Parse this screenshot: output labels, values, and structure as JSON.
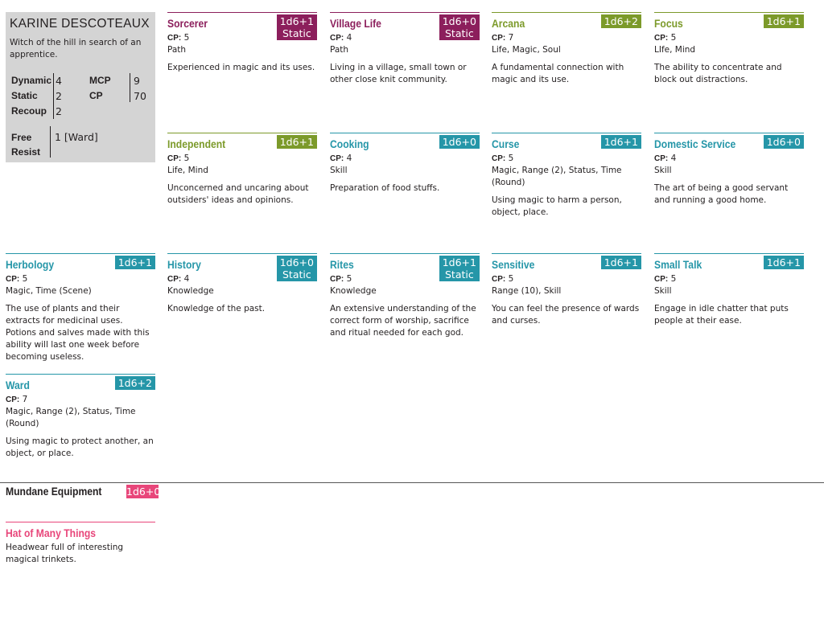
{
  "character": {
    "name": "KARINE DESCOTEAUX",
    "description": "Witch of the hill in search of an apprentice.",
    "stats": {
      "dynamic_label": "Dynamic",
      "dynamic_value": "4",
      "static_label": "Static",
      "static_value": "2",
      "recoup_label": "Recoup",
      "recoup_value": "2",
      "mcp_label": "MCP",
      "mcp_value": "9",
      "cp_label": "CP",
      "cp_value": "70",
      "free_label": "Free",
      "resist_label": "Resist",
      "free_value": "1 [Ward]"
    }
  },
  "cp_label": "CP:",
  "abilities": [
    {
      "name": "Sorcerer",
      "die": "1d6+1",
      "die2": "Static",
      "cp": "5",
      "tags": "Path",
      "description": "Experienced in magic and its uses."
    },
    {
      "name": "Village Life",
      "die": "1d6+0",
      "die2": "Static",
      "cp": "4",
      "tags": "Path",
      "description": "Living in a village, small town or other close knit community."
    },
    {
      "name": "Arcana",
      "die": "1d6+2",
      "die2": "",
      "cp": "7",
      "tags": "Life, Magic, Soul",
      "description": "A fundamental connection with magic and its use."
    },
    {
      "name": "Focus",
      "die": "1d6+1",
      "die2": "",
      "cp": "5",
      "tags": "LIfe, Mind",
      "description": "The ability to concentrate and block out distractions."
    },
    {
      "name": "Independent",
      "die": "1d6+1",
      "die2": "",
      "cp": "5",
      "tags": "Life, Mind",
      "description": "Unconcerned and uncaring about outsiders' ideas and opinions."
    },
    {
      "name": "Cooking",
      "die": "1d6+0",
      "die2": "",
      "cp": "4",
      "tags": "Skill",
      "description": "Preparation of food stuffs."
    },
    {
      "name": "Curse",
      "die": "1d6+1",
      "die2": "",
      "cp": "5",
      "tags": "Magic, Range (2), Status, Time (Round)",
      "description": "Using magic to harm a person, object, place."
    },
    {
      "name": "Domestic Service",
      "die": "1d6+0",
      "die2": "",
      "cp": "4",
      "tags": "Skill",
      "description": "The art of being a good servant and running a good home."
    },
    {
      "name": "Herbology",
      "die": "1d6+1",
      "die2": "",
      "cp": "5",
      "tags": "Magic, Time (Scene)",
      "description": "The use of plants and their extracts for medicinal uses. Potions and salves made with this ability will last one week before becoming useless."
    },
    {
      "name": "History",
      "die": "1d6+0",
      "die2": "Static",
      "cp": "4",
      "tags": "Knowledge",
      "description": "Knowledge of the past."
    },
    {
      "name": "Rites",
      "die": "1d6+1",
      "die2": "Static",
      "cp": "5",
      "tags": "Knowledge",
      "description": "An extensive understanding of the correct form of worship, sacrifice and ritual needed for each god."
    },
    {
      "name": "Sensitive",
      "die": "1d6+1",
      "die2": "",
      "cp": "5",
      "tags": "Range (10), Skill",
      "description": "You can feel the presence of wards and curses."
    },
    {
      "name": "Small Talk",
      "die": "1d6+1",
      "die2": "",
      "cp": "5",
      "tags": "Skill",
      "description": "Engage in idle chatter that puts people at their ease."
    },
    {
      "name": "Ward",
      "die": "1d6+2",
      "die2": "",
      "cp": "7",
      "tags": "Magic, Range (2), Status, Time (Round)",
      "description": "Using magic to protect another, an object, or place."
    }
  ],
  "mundane": {
    "title": "Mundane Equipment",
    "die": "1d6+0",
    "items": [
      {
        "name": "Hat of Many Things",
        "description": "Headwear full of interesting magical trinkets."
      }
    ]
  },
  "colors": {
    "path": "#8c1f5c",
    "core": "#7c9a2a",
    "skill": "#2596a8",
    "mundane": "#e8467a",
    "panel": "#d4d4d4"
  }
}
